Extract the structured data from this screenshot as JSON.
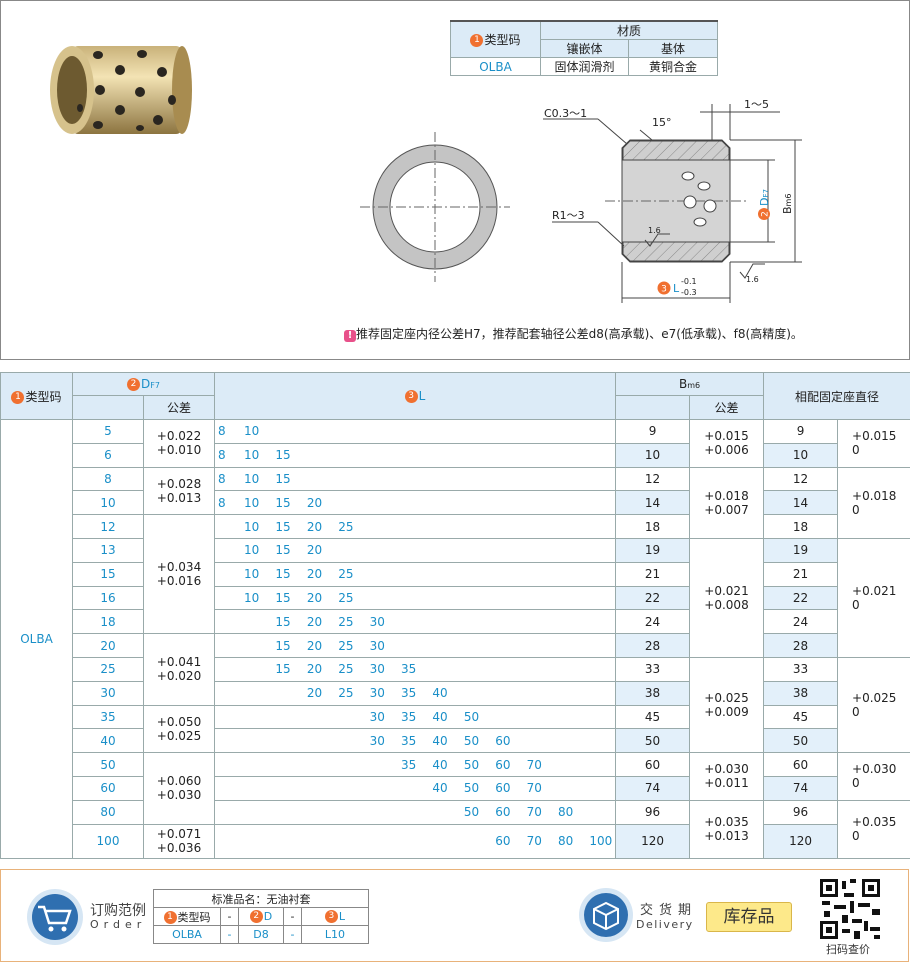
{
  "header_table": {
    "type_code": "类型码",
    "badge": "1",
    "material": "材质",
    "insert": "镶嵌体",
    "base": "基体",
    "row": [
      "OLBA",
      "固体润滑剂",
      "黄铜合金"
    ]
  },
  "drawing": {
    "chamfer": "C0.3～1",
    "angle": "15°",
    "length_range": "1～5",
    "radius": "R1～3",
    "roughness_inner": "1.6",
    "roughness_outer": "1.6",
    "d_badge": "2",
    "d_label": "D",
    "d_sub": "F7",
    "b_label": "B",
    "b_sub": "m6",
    "l_badge": "3",
    "l_label": "L",
    "l_upper": "-0.1",
    "l_lower": "-0.3"
  },
  "note": {
    "icon": "!",
    "text": "推荐固定座内径公差H7，推荐配套轴径公差d8(高承载)、e7(低承载)、f8(高精度)。"
  },
  "table": {
    "headers": {
      "type_badge": "1",
      "type_code": "类型码",
      "d_badge": "2",
      "d": "D",
      "d_sub": "F7",
      "d_tolerance": "公差",
      "l_badge": "3",
      "l": "L",
      "b": "B",
      "b_sub": "m6",
      "b_tolerance": "公差",
      "fit": "相配固定座直径"
    },
    "type_code": "OLBA",
    "rows": [
      {
        "d": 5,
        "l": [
          8,
          10
        ],
        "b": 9,
        "fit": 9
      },
      {
        "d": 6,
        "l": [
          8,
          10,
          15
        ],
        "b": 10,
        "fit": 10
      },
      {
        "d": 8,
        "l": [
          8,
          10,
          15
        ],
        "b": 12,
        "fit": 12
      },
      {
        "d": 10,
        "l": [
          8,
          10,
          15,
          20
        ],
        "b": 14,
        "fit": 14
      },
      {
        "d": 12,
        "l": [
          10,
          15,
          20,
          25
        ],
        "b": 18,
        "fit": 18
      },
      {
        "d": 13,
        "l": [
          10,
          15,
          20
        ],
        "b": 19,
        "fit": 19
      },
      {
        "d": 15,
        "l": [
          10,
          15,
          20,
          25
        ],
        "b": 21,
        "fit": 21
      },
      {
        "d": 16,
        "l": [
          10,
          15,
          20,
          25
        ],
        "b": 22,
        "fit": 22
      },
      {
        "d": 18,
        "l": [
          15,
          20,
          25,
          30
        ],
        "b": 24,
        "fit": 24
      },
      {
        "d": 20,
        "l": [
          15,
          20,
          25,
          30
        ],
        "b": 28,
        "fit": 28
      },
      {
        "d": 25,
        "l": [
          15,
          20,
          25,
          30,
          35
        ],
        "b": 33,
        "fit": 33
      },
      {
        "d": 30,
        "l": [
          20,
          25,
          30,
          35,
          40
        ],
        "b": 38,
        "fit": 38
      },
      {
        "d": 35,
        "l": [
          30,
          35,
          40,
          50
        ],
        "b": 45,
        "fit": 45
      },
      {
        "d": 40,
        "l": [
          30,
          35,
          40,
          50,
          60
        ],
        "b": 50,
        "fit": 50
      },
      {
        "d": 50,
        "l": [
          35,
          40,
          50,
          60,
          70
        ],
        "b": 60,
        "fit": 60
      },
      {
        "d": 60,
        "l": [
          40,
          50,
          60,
          70
        ],
        "b": 74,
        "fit": 74
      },
      {
        "d": 80,
        "l": [
          50,
          60,
          70,
          80
        ],
        "b": 96,
        "fit": 96
      },
      {
        "d": 100,
        "l": [
          60,
          70,
          80,
          100
        ],
        "b": 120,
        "fit": 120
      }
    ],
    "d_tolerance": [
      {
        "upper": "+0.022",
        "lower": "+0.010",
        "span": 2
      },
      {
        "upper": "+0.028",
        "lower": "+0.013",
        "span": 2
      },
      {
        "upper": "+0.034",
        "lower": "+0.016",
        "span": 5
      },
      {
        "upper": "+0.041",
        "lower": "+0.020",
        "span": 3
      },
      {
        "upper": "+0.050",
        "lower": "+0.025",
        "span": 2
      },
      {
        "upper": "+0.060",
        "lower": "+0.030",
        "span": 3
      },
      {
        "upper": "+0.071",
        "lower": "+0.036",
        "span": 1
      }
    ],
    "b_tolerance": [
      {
        "upper": "+0.015",
        "lower": "+0.006",
        "span": 2
      },
      {
        "upper": "+0.018",
        "lower": "+0.007",
        "span": 3
      },
      {
        "upper": "+0.021",
        "lower": "+0.008",
        "span": 5
      },
      {
        "upper": "+0.025",
        "lower": "+0.009",
        "span": 4
      },
      {
        "upper": "+0.030",
        "lower": "+0.011",
        "span": 2
      },
      {
        "upper": "+0.035",
        "lower": "+0.013",
        "span": 2
      }
    ],
    "fit_tolerance": [
      {
        "upper": "+0.015",
        "lower": "0",
        "span": 2
      },
      {
        "upper": "+0.018",
        "lower": "0",
        "span": 3
      },
      {
        "upper": "+0.021",
        "lower": "0",
        "span": 5
      },
      {
        "upper": "+0.025",
        "lower": "0",
        "span": 4
      },
      {
        "upper": "+0.030",
        "lower": "0",
        "span": 2
      },
      {
        "upper": "+0.035",
        "lower": "0",
        "span": 2
      }
    ]
  },
  "footer": {
    "order_title": "订购范例",
    "order_en": "Order",
    "product_name": "标准品名：无油衬套",
    "order_headers": [
      {
        "badge": "1",
        "text": "类型码"
      },
      "-",
      {
        "badge": "2",
        "text": "D"
      },
      "-",
      {
        "badge": "3",
        "text": "L"
      }
    ],
    "order_values": [
      "OLBA",
      "-",
      "D8",
      "-",
      "L10"
    ],
    "delivery_title": "交货期",
    "delivery_en": "Delivery",
    "stock": "库存品",
    "qr_caption": "扫码查价"
  }
}
